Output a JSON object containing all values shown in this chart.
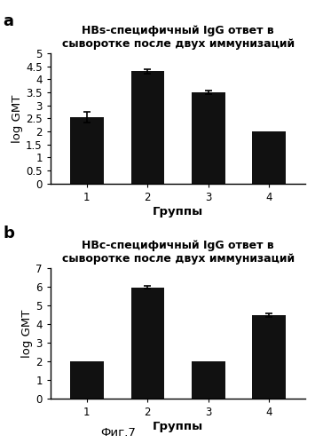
{
  "panel_a": {
    "label": "a",
    "title": "HBs-специфичный IgG ответ в\nсыворотке после двух иммунизаций",
    "categories": [
      "1",
      "2",
      "3",
      "4"
    ],
    "values": [
      2.55,
      4.3,
      3.5,
      2.0
    ],
    "errors": [
      0.2,
      0.1,
      0.07,
      0.0
    ],
    "ylim": [
      0,
      5
    ],
    "yticks": [
      0,
      0.5,
      1.0,
      1.5,
      2.0,
      2.5,
      3.0,
      3.5,
      4.0,
      4.5,
      5.0
    ],
    "ylabel": "log GMT",
    "xlabel": "Группы"
  },
  "panel_b": {
    "label": "b",
    "title": "НВс-специфичный IgG ответ в\nсыворотке после двух иммунизаций",
    "categories": [
      "1",
      "2",
      "3",
      "4"
    ],
    "values": [
      2.0,
      5.97,
      2.0,
      4.5
    ],
    "errors": [
      0.0,
      0.07,
      0.0,
      0.1
    ],
    "ylim": [
      0,
      7
    ],
    "yticks": [
      0,
      1,
      2,
      3,
      4,
      5,
      6,
      7
    ],
    "ylabel": "log GMT",
    "xlabel": "Группы"
  },
  "fig_label": "Фиг.7",
  "bar_color": "#111111",
  "bar_width": 0.55,
  "background_color": "#ffffff",
  "title_fontsize": 9.0,
  "axis_label_fontsize": 9.5,
  "tick_fontsize": 8.5,
  "panel_label_fontsize": 13
}
